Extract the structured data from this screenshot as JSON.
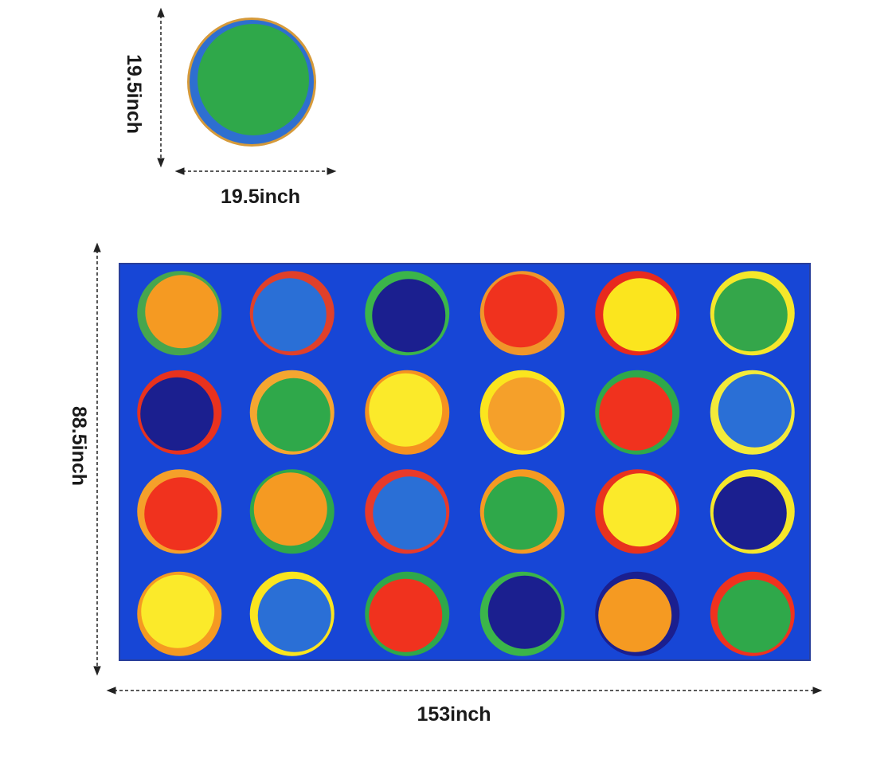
{
  "single_spot": {
    "height_label": "19.5inch",
    "width_label": "19.5inch",
    "center_color": "#2fa84a",
    "ring_color": "#2e6fd0",
    "border_color": "#d69a3a"
  },
  "rug": {
    "height_label": "88.5inch",
    "width_label": "153inch",
    "background_color": "#1746d6",
    "rows": 4,
    "columns": 6,
    "spots": [
      [
        "#f59a22",
        "#46a64e"
      ],
      [
        "#2a6fd6",
        "#e0402a"
      ],
      [
        "#1b1f8f",
        "#3bb54a"
      ],
      [
        "#f0321e",
        "#f0962a"
      ],
      [
        "#fbe51e",
        "#e82a1e"
      ],
      [
        "#34a64a",
        "#f5e72a"
      ],
      [
        "#1b1f8f",
        "#e8321e"
      ],
      [
        "#2fa84a",
        "#f5a630"
      ],
      [
        "#fbea2a",
        "#f59220"
      ],
      [
        "#f5a02a",
        "#fbe51e"
      ],
      [
        "#f0321e",
        "#2fa84a"
      ],
      [
        "#2a6fd6",
        "#f3ea3a"
      ],
      [
        "#f0321e",
        "#f5a02a"
      ],
      [
        "#f59a22",
        "#2fa84a"
      ],
      [
        "#2a6fd6",
        "#e83a2a"
      ],
      [
        "#2fa84a",
        "#f59a22"
      ],
      [
        "#fbea2a",
        "#e8321e"
      ],
      [
        "#1b1f8f",
        "#f5e72a"
      ],
      [
        "#fbea2a",
        "#f59a22"
      ],
      [
        "#2a6fd6",
        "#fbe51e"
      ],
      [
        "#f0321e",
        "#2fa84a"
      ],
      [
        "#1b1f8f",
        "#3bb54a"
      ],
      [
        "#f59a22",
        "#1b1f8f"
      ],
      [
        "#2fa84a",
        "#f0321e"
      ]
    ]
  }
}
